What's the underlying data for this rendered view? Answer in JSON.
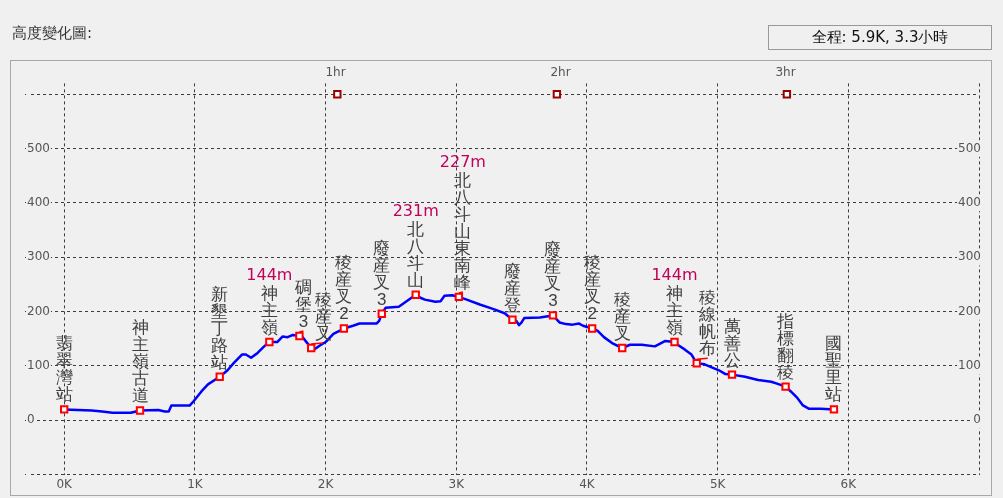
{
  "chart_data": {
    "type": "line",
    "title": "高度變化圖:",
    "subtitle": "全程: 5.9K, 3.3小時",
    "xlim": [
      -0.3,
      7
    ],
    "xticks": [
      {
        "value": 0,
        "label": "0K"
      },
      {
        "value": 1,
        "label": "1K"
      },
      {
        "value": 2,
        "label": "2K"
      },
      {
        "value": 3,
        "label": "3K"
      },
      {
        "value": 4,
        "label": "4K"
      },
      {
        "value": 5,
        "label": "5K"
      },
      {
        "value": 6,
        "label": "6K"
      },
      {
        "value": 7,
        "label": null
      }
    ],
    "x2lim": [
      -0.38,
      3.86
    ],
    "x2ticks": [
      {
        "value": 1,
        "label": "1hr"
      },
      {
        "value": 2,
        "label": "2hr"
      },
      {
        "value": 3,
        "label": "3hr"
      }
    ],
    "ylim": [
      -100,
      620
    ],
    "yticks": [
      {
        "value": -100,
        "label": null
      },
      0,
      100,
      200,
      300,
      400,
      500,
      {
        "value": 600,
        "label": null
      }
    ],
    "y2lim": [
      -100,
      620
    ],
    "y2ticks": [
      0,
      100,
      200,
      300,
      400,
      500
    ],
    "grid": true,
    "series": [
      {
        "type": "line",
        "color": "#0000ff",
        "marker": "none",
        "x": [
          0,
          0.21,
          0.29,
          0.37,
          0.51,
          0.58,
          0.72,
          0.77,
          0.8,
          0.82,
          0.85,
          0.96,
          0.99,
          1.05,
          1.1,
          1.19,
          1.25,
          1.3,
          1.36,
          1.39,
          1.43,
          1.48,
          1.53,
          1.57,
          1.63,
          1.67,
          1.71,
          1.75,
          1.8,
          1.82,
          1.86,
          1.89,
          1.91,
          1.96,
          2,
          2.06,
          2.11,
          2.14,
          2.21,
          2.26,
          2.39,
          2.41,
          2.43,
          2.46,
          2.56,
          2.62,
          2.69,
          2.73,
          2.76,
          2.84,
          2.88,
          2.91,
          2.97,
          3.02,
          3.08,
          3.18,
          3.28,
          3.37,
          3.43,
          3.46,
          3.48,
          3.5,
          3.52,
          3.64,
          3.74,
          3.79,
          3.84,
          3.89,
          3.94,
          3.97,
          4.04,
          4.08,
          4.13,
          4.2,
          4.27,
          4.33,
          4.42,
          4.52,
          4.6,
          4.67,
          4.7,
          4.75,
          4.8,
          4.84,
          4.9,
          5.01,
          5.06,
          5.11,
          5.21,
          5.31,
          5.41,
          5.46,
          5.52,
          5.56,
          5.61,
          5.65,
          5.7,
          5.79,
          5.89
        ],
        "values": [
          20,
          18,
          16,
          14,
          14,
          18,
          19,
          16,
          16,
          27,
          27,
          27,
          35,
          53,
          66,
          80,
          92,
          106,
          121,
          121,
          115,
          124,
          136,
          144,
          144,
          154,
          153,
          157,
          155,
          154,
          142,
          133,
          130,
          138,
          144,
          159,
          165,
          169,
          174,
          178,
          178,
          183,
          196,
          207,
          209,
          219,
          231,
          225,
          222,
          218,
          219,
          229,
          230,
          227,
          222,
          213,
          205,
          197,
          185,
          183,
          175,
          180,
          188,
          189,
          193,
          180,
          177,
          176,
          178,
          174,
          169,
          165,
          153,
          141,
          133,
          139,
          139,
          136,
          146,
          144,
          138,
          130,
          121,
          105,
          103,
          92,
          85,
          84,
          80,
          74,
          71,
          67,
          62,
          53,
          41,
          28,
          21,
          21,
          20
        ]
      },
      {
        "type": "scatter",
        "color": "#ff0000",
        "marker": "square",
        "x": [
          0,
          0.58,
          1.19,
          1.57,
          1.8,
          1.89,
          2.14,
          2.43,
          2.69,
          3.02,
          3.43,
          3.74,
          4.04,
          4.27,
          4.67,
          4.84,
          5.11,
          5.52,
          5.89
        ],
        "values": [
          20,
          18,
          80,
          144,
          155,
          133,
          169,
          196,
          231,
          227,
          185,
          193,
          169,
          133,
          144,
          105,
          84,
          62,
          20
        ],
        "value_labels": [
          "翡翠灣站",
          "神主嶺古道",
          "新墾丁路站",
          "144m\n神主嶺",
          "碉堡3",
          "稜産叉",
          "稜産叉2",
          "廢産叉3",
          "231m\n北八斗山",
          "227m\n北八斗山東南峰",
          "廢産登",
          "廢産叉3",
          "稜産叉2",
          "稜産叉",
          "144m\n神主嶺",
          "稜線帆布",
          "萬善公",
          "指標翻稜",
          "國聖里站"
        ]
      },
      {
        "type": "scatter",
        "color": "#990000",
        "marker": "square",
        "x": [
          2.09,
          3.77,
          5.53
        ],
        "values": [
          600,
          600,
          600
        ]
      }
    ]
  }
}
